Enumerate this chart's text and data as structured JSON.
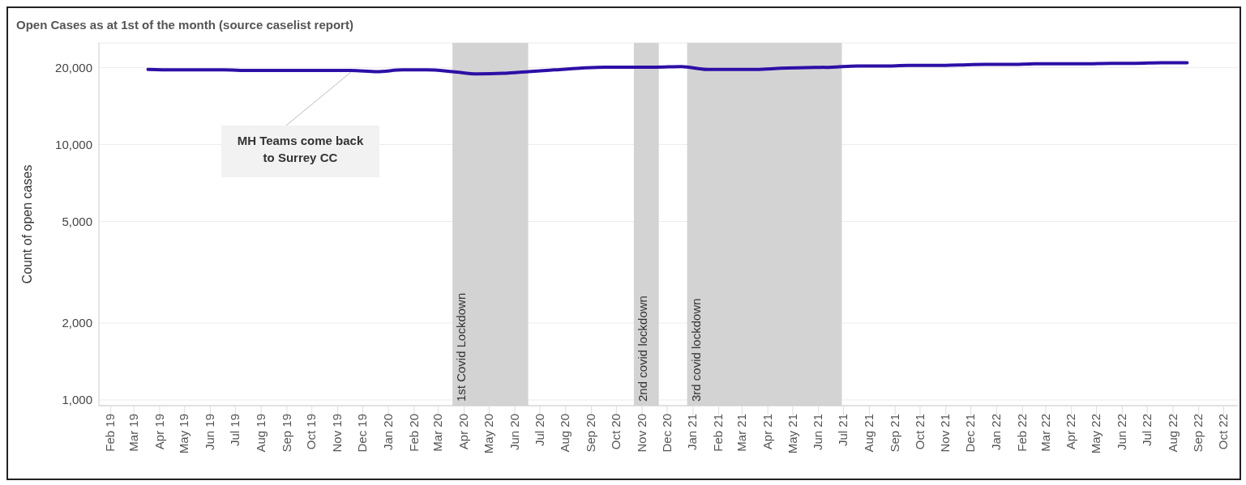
{
  "chart_data": {
    "type": "line",
    "title": "Open Cases as at 1st of the month (source caselist report)",
    "ylabel": "Count of open cases",
    "x": [
      "2019-04-01",
      "2019-05-01",
      "2019-06-01",
      "2019-07-01",
      "2019-08-01",
      "2019-09-01",
      "2019-10-01",
      "2019-11-01",
      "2019-12-01",
      "2020-01-01",
      "2020-02-01",
      "2020-03-01",
      "2020-04-01",
      "2020-05-01",
      "2020-06-01",
      "2020-07-01",
      "2020-08-01",
      "2020-09-01",
      "2020-10-01",
      "2020-11-01",
      "2020-12-01",
      "2021-01-01",
      "2021-02-01",
      "2021-03-01",
      "2021-04-01",
      "2021-05-01",
      "2021-06-01",
      "2021-07-01",
      "2021-08-01",
      "2021-09-01",
      "2021-10-01",
      "2021-11-01",
      "2021-12-01",
      "2022-01-01",
      "2022-02-01",
      "2022-03-01",
      "2022-04-01",
      "2022-05-01",
      "2022-06-01",
      "2022-07-01",
      "2022-08-01",
      "2022-09-01"
    ],
    "series": [
      {
        "color": "#2d0fa6",
        "values": [
          19700,
          19600,
          19600,
          19600,
          19500,
          19500,
          19500,
          19500,
          19500,
          19300,
          19600,
          19600,
          19300,
          18900,
          19000,
          19300,
          19600,
          19900,
          20100,
          20100,
          20100,
          20200,
          19700,
          19700,
          19700,
          19900,
          20000,
          20100,
          20300,
          20300,
          20400,
          20400,
          20500,
          20600,
          20600,
          20700,
          20700,
          20700,
          20800,
          20800,
          20900,
          20900
        ]
      }
    ],
    "log": "y",
    "ylim": [
      950,
      25000
    ],
    "yticks": [
      {
        "value": 1000,
        "label": "1,000"
      },
      {
        "value": 2000,
        "label": "2,000"
      },
      {
        "value": 5000,
        "label": "5,000"
      },
      {
        "value": 10000,
        "label": "10,000"
      },
      {
        "value": 20000,
        "label": "20,000"
      }
    ],
    "xlim": [
      "2019-02-01",
      "2022-11-01"
    ],
    "xticks": [
      {
        "value": "2019-02-15",
        "label": "Feb 19"
      },
      {
        "value": "2019-03-15",
        "label": "Mar 19"
      },
      {
        "value": "2019-04-15",
        "label": "Apr 19"
      },
      {
        "value": "2019-05-15",
        "label": "May 19"
      },
      {
        "value": "2019-06-15",
        "label": "Jun 19"
      },
      {
        "value": "2019-07-15",
        "label": "Jul 19"
      },
      {
        "value": "2019-08-15",
        "label": "Aug 19"
      },
      {
        "value": "2019-09-15",
        "label": "Sep 19"
      },
      {
        "value": "2019-10-15",
        "label": "Oct 19"
      },
      {
        "value": "2019-11-15",
        "label": "Nov 19"
      },
      {
        "value": "2019-12-15",
        "label": "Dec 19"
      },
      {
        "value": "2020-01-15",
        "label": "Jan 20"
      },
      {
        "value": "2020-02-15",
        "label": "Feb 20"
      },
      {
        "value": "2020-03-15",
        "label": "Mar 20"
      },
      {
        "value": "2020-04-15",
        "label": "Apr 20"
      },
      {
        "value": "2020-05-15",
        "label": "May 20"
      },
      {
        "value": "2020-06-15",
        "label": "Jun 20"
      },
      {
        "value": "2020-07-15",
        "label": "Jul 20"
      },
      {
        "value": "2020-08-15",
        "label": "Aug 20"
      },
      {
        "value": "2020-09-15",
        "label": "Sep 20"
      },
      {
        "value": "2020-10-15",
        "label": "Oct 20"
      },
      {
        "value": "2020-11-15",
        "label": "Nov 20"
      },
      {
        "value": "2020-12-15",
        "label": "Dec 20"
      },
      {
        "value": "2021-01-15",
        "label": "Jan 21"
      },
      {
        "value": "2021-02-15",
        "label": "Feb 21"
      },
      {
        "value": "2021-03-15",
        "label": "Mar 21"
      },
      {
        "value": "2021-04-15",
        "label": "Apr 21"
      },
      {
        "value": "2021-05-15",
        "label": "May 21"
      },
      {
        "value": "2021-06-15",
        "label": "Jun 21"
      },
      {
        "value": "2021-07-15",
        "label": "Jul 21"
      },
      {
        "value": "2021-08-15",
        "label": "Aug 21"
      },
      {
        "value": "2021-09-15",
        "label": "Sep 21"
      },
      {
        "value": "2021-10-15",
        "label": "Oct 21"
      },
      {
        "value": "2021-11-15",
        "label": "Nov 21"
      },
      {
        "value": "2021-12-15",
        "label": "Dec 21"
      },
      {
        "value": "2022-01-15",
        "label": "Jan 22"
      },
      {
        "value": "2022-02-15",
        "label": "Feb 22"
      },
      {
        "value": "2022-03-15",
        "label": "Mar 22"
      },
      {
        "value": "2022-04-15",
        "label": "Apr 22"
      },
      {
        "value": "2022-05-15",
        "label": "May 22"
      },
      {
        "value": "2022-06-15",
        "label": "Jun 22"
      },
      {
        "value": "2022-07-15",
        "label": "Jul 22"
      },
      {
        "value": "2022-08-15",
        "label": "Aug 22"
      },
      {
        "value": "2022-09-15",
        "label": "Sep 22"
      },
      {
        "value": "2022-10-15",
        "label": "Oct 22"
      }
    ],
    "bands": [
      {
        "axis": "x",
        "from": "2020-04-01",
        "to": "2020-07-01",
        "label": "1st Covid Lockdown",
        "color": "#d3d3d3"
      },
      {
        "axis": "x",
        "from": "2020-11-05",
        "to": "2020-12-05",
        "label": "2nd covid lockdown",
        "color": "#d3d3d3"
      },
      {
        "axis": "x",
        "from": "2021-01-08",
        "to": "2021-07-13",
        "label": "3rd covid lockdown",
        "color": "#d3d3d3"
      }
    ],
    "annotations": [
      {
        "text": "MH Teams come back to Surrey CC",
        "x": "2019-12-01",
        "y": 19500
      }
    ],
    "grid": "y",
    "marker": "none",
    "line_style": "solid"
  }
}
